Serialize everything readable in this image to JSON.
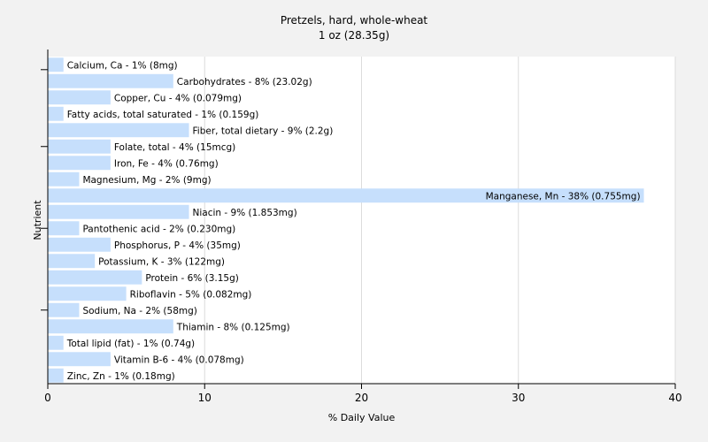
{
  "title": "Pretzels, hard, whole-wheat",
  "subtitle": "1 oz (28.35g)",
  "colors": {
    "background": "#f2f2f2",
    "plot_background": "#ffffff",
    "bar": "#c6dffc",
    "grid": "#dcdcdc",
    "axis": "#000000"
  },
  "chart_data": {
    "type": "bar",
    "orientation": "horizontal",
    "xlabel": "% Daily Value",
    "ylabel": "Nutrient",
    "xlim": [
      0,
      40
    ],
    "xticks": [
      0,
      10,
      20,
      30,
      40
    ],
    "grid": true,
    "categories": [
      "Calcium, Ca",
      "Carbohydrates",
      "Copper, Cu",
      "Fatty acids, total saturated",
      "Fiber, total dietary",
      "Folate, total",
      "Iron, Fe",
      "Magnesium, Mg",
      "Manganese, Mn",
      "Niacin",
      "Pantothenic acid",
      "Phosphorus, P",
      "Potassium, K",
      "Protein",
      "Riboflavin",
      "Sodium, Na",
      "Thiamin",
      "Total lipid (fat)",
      "Vitamin B-6",
      "Zinc, Zn"
    ],
    "values": [
      1,
      8,
      4,
      1,
      9,
      4,
      4,
      2,
      38,
      9,
      2,
      4,
      3,
      6,
      5,
      2,
      8,
      1,
      4,
      1
    ],
    "labels": [
      "Calcium, Ca - 1% (8mg)",
      "Carbohydrates - 8% (23.02g)",
      "Copper, Cu - 4% (0.079mg)",
      "Fatty acids, total saturated - 1% (0.159g)",
      "Fiber, total dietary - 9% (2.2g)",
      "Folate, total - 4% (15mcg)",
      "Iron, Fe - 4% (0.76mg)",
      "Magnesium, Mg - 2% (9mg)",
      "Manganese, Mn - 38% (0.755mg)",
      "Niacin - 9% (1.853mg)",
      "Pantothenic acid - 2% (0.230mg)",
      "Phosphorus, P - 4% (35mg)",
      "Potassium, K - 3% (122mg)",
      "Protein - 6% (3.15g)",
      "Riboflavin - 5% (0.082mg)",
      "Sodium, Na - 2% (58mg)",
      "Thiamin - 8% (0.125mg)",
      "Total lipid (fat) - 1% (0.74g)",
      "Vitamin B-6 - 4% (0.078mg)",
      "Zinc, Zn - 1% (0.18mg)"
    ]
  }
}
